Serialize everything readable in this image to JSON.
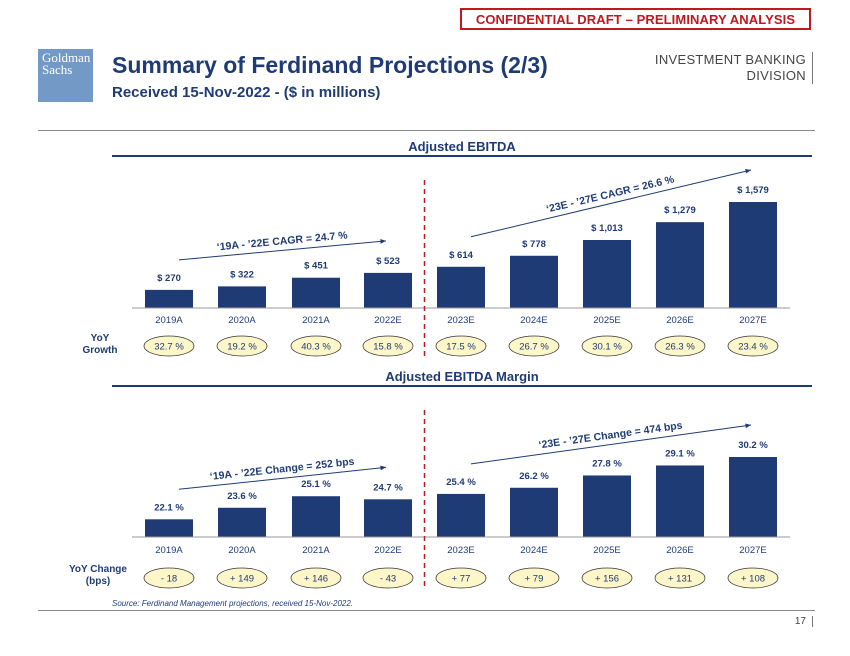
{
  "banner": "CONFIDENTIAL DRAFT – PRELIMINARY ANALYSIS",
  "logo": {
    "line1": "Goldman",
    "line2": "Sachs"
  },
  "header": {
    "title": "Summary of Ferdinand Projections (2/3)",
    "subtitle": "Received 15-Nov-2022 - ($ in millions)",
    "division_line1": "INVESTMENT BANKING",
    "division_line2": "DIVISION"
  },
  "footer": {
    "source": "Source: Ferdinand Management projections, received 15-Nov-2022.",
    "page": "17"
  },
  "colors": {
    "bar": "#1f3b75",
    "ellipse": "#fdf6c8",
    "divider": "#c0181f"
  },
  "chart_data": [
    {
      "type": "bar",
      "title": "Adjusted EBITDA",
      "categories": [
        "2019A",
        "2020A",
        "2021A",
        "2022E",
        "2023E",
        "2024E",
        "2025E",
        "2026E",
        "2027E"
      ],
      "values": [
        270,
        322,
        451,
        523,
        614,
        778,
        1013,
        1279,
        1579
      ],
      "value_labels": [
        "$ 270",
        "$ 322",
        "$ 451",
        "$ 523",
        "$ 614",
        "$ 778",
        "$ 1,013",
        "$ 1,279",
        "$ 1,579"
      ],
      "row_label": [
        "YoY",
        "Growth"
      ],
      "row_values": [
        "32.7 %",
        "19.2 %",
        "40.3 %",
        "15.8 %",
        "17.5 %",
        "26.7 %",
        "30.1 %",
        "26.3 %",
        "23.4 %"
      ],
      "annotations": [
        "‘19A - ’22E CAGR =  24.7 %",
        "‘23E - ’27E CAGR =  26.6 %"
      ]
    },
    {
      "type": "bar",
      "title": "Adjusted EBITDA Margin",
      "categories": [
        "2019A",
        "2020A",
        "2021A",
        "2022E",
        "2023E",
        "2024E",
        "2025E",
        "2026E",
        "2027E"
      ],
      "values": [
        22.1,
        23.6,
        25.1,
        24.7,
        25.4,
        26.2,
        27.8,
        29.1,
        30.2
      ],
      "value_labels": [
        "22.1 %",
        "23.6 %",
        "25.1 %",
        "24.7 %",
        "25.4 %",
        "26.2 %",
        "27.8 %",
        "29.1 %",
        "30.2 %"
      ],
      "row_label": [
        "YoY Change",
        "(bps)"
      ],
      "row_values": [
        "- 18",
        "+ 149",
        "+ 146",
        "- 43",
        "+ 77",
        "+ 79",
        "+ 156",
        "+ 131",
        "+ 108"
      ],
      "annotations": [
        "‘19A - ’22E Change =  252 bps",
        "‘23E - ’27E Change =  474 bps"
      ]
    }
  ]
}
